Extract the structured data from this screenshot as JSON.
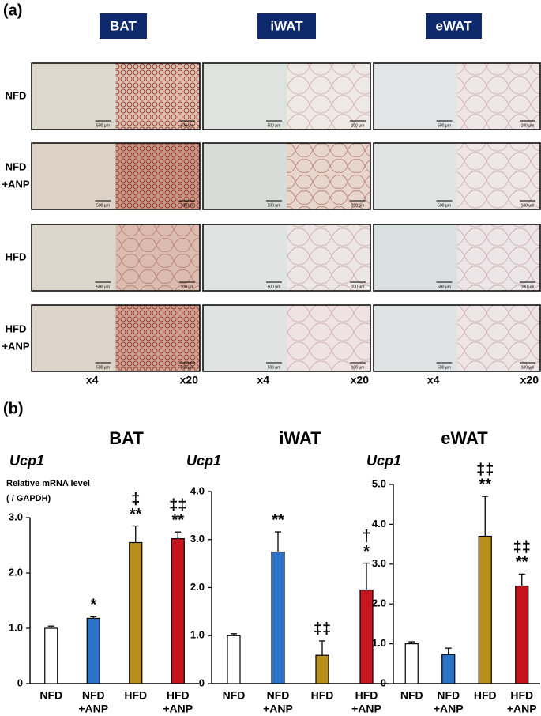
{
  "panel_a": {
    "label": "(a)",
    "columns": [
      "BAT",
      "iWAT",
      "eWAT"
    ],
    "rows": [
      [
        "NFD"
      ],
      [
        "NFD",
        "+ANP"
      ],
      [
        "HFD"
      ],
      [
        "HFD",
        "+ANP"
      ]
    ],
    "magnifications": [
      "x4",
      "x20"
    ],
    "scale_bars": [
      "500 µm",
      "100 µm"
    ]
  },
  "panel_b": {
    "label": "(b)"
  },
  "chart_data": [
    {
      "type": "bar",
      "title": "BAT",
      "gene": "Ucp1",
      "y_label": [
        "Relative mRNA level",
        "( / GAPDH)"
      ],
      "categories": [
        [
          "NFD"
        ],
        [
          "NFD",
          "+ANP"
        ],
        [
          "HFD"
        ],
        [
          "HFD",
          "+ANP"
        ]
      ],
      "colors": [
        "#ffffff",
        "#2a72c8",
        "#b88f1c",
        "#c4141c"
      ],
      "values": [
        1.0,
        1.18,
        2.55,
        2.62
      ],
      "errors": [
        0.04,
        0.03,
        0.3,
        0.12
      ],
      "annotations": [
        null,
        [
          "*"
        ],
        [
          "‡",
          "**"
        ],
        [
          "‡‡",
          "**"
        ]
      ],
      "ylim": [
        0,
        3
      ],
      "yticks": [
        0,
        {
          "value": 1,
          "label": "1.0"
        },
        {
          "value": 2,
          "label": "2.0"
        },
        {
          "value": 3,
          "label": "3.0"
        }
      ]
    },
    {
      "type": "bar",
      "title": "iWAT",
      "gene": "Ucp1",
      "categories": [
        [
          "NFD"
        ],
        [
          "NFD",
          "+ANP"
        ],
        [
          "HFD"
        ],
        [
          "HFD",
          "+ANP"
        ]
      ],
      "colors": [
        "#ffffff",
        "#2a72c8",
        "#b88f1c",
        "#c4141c"
      ],
      "values": [
        1.0,
        2.74,
        0.59,
        1.95
      ],
      "errors": [
        0.04,
        0.42,
        0.3,
        0.56
      ],
      "annotations": [
        null,
        [
          "**"
        ],
        [
          "‡‡"
        ],
        [
          "†",
          "*"
        ]
      ],
      "ylim": [
        0,
        4
      ],
      "yticks": [
        0,
        {
          "value": 1,
          "label": "1.0"
        },
        {
          "value": 2,
          "label": "2.0"
        },
        {
          "value": 3,
          "label": "3.0"
        },
        {
          "value": 4,
          "label": "4.0"
        }
      ]
    },
    {
      "type": "bar",
      "title": "eWAT",
      "gene": "Ucp1",
      "categories": [
        [
          "NFD"
        ],
        [
          "NFD",
          "+ANP"
        ],
        [
          "HFD"
        ],
        [
          "HFD",
          "+ANP"
        ]
      ],
      "colors": [
        "#ffffff",
        "#2a72c8",
        "#b88f1c",
        "#c4141c"
      ],
      "values": [
        1.0,
        0.73,
        3.7,
        2.45
      ],
      "errors": [
        0.05,
        0.16,
        1.0,
        0.3
      ],
      "annotations": [
        null,
        null,
        [
          "‡‡",
          "**"
        ],
        [
          "‡‡",
          "**"
        ]
      ],
      "ylim": [
        0,
        5
      ],
      "yticks": [
        0,
        {
          "value": 1,
          "label": "1.0"
        },
        {
          "value": 2,
          "label": "2.0"
        },
        {
          "value": 3,
          "label": "3.0"
        },
        {
          "value": 4,
          "label": "4.0"
        },
        {
          "value": 5,
          "label": "5.0"
        }
      ]
    }
  ]
}
